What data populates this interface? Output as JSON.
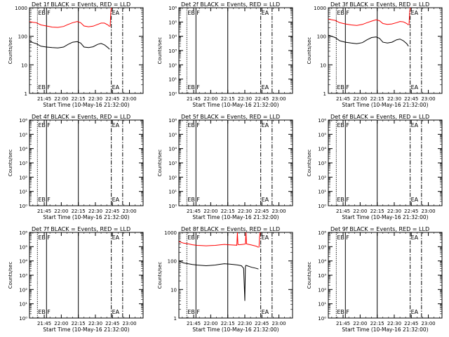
{
  "chart_data": [
    {
      "type": "line",
      "title": "Det 1f BLACK = Events, RED = LLD",
      "xlabel": "Start Time (10-May-16 21:32:00)",
      "ylabel": "Counts/sec",
      "x_tick_labels": [
        "21:45",
        "22:00",
        "22:15",
        "22:30",
        "22:45",
        "23:00"
      ],
      "x_ticks_min": [
        13,
        28,
        43,
        58,
        73,
        88
      ],
      "xlim_min": [
        0,
        100
      ],
      "yscale": "log",
      "ylim": [
        1,
        1000
      ],
      "y_tick_labels": [
        "1",
        "10",
        "100",
        "1000"
      ],
      "y_tick_values": [
        1,
        10,
        100,
        1000
      ],
      "markers": [
        {
          "type": "dotted",
          "x_min": 7,
          "label": "EB"
        },
        {
          "type": "solid",
          "x_min": 15,
          "label": "F"
        },
        {
          "type": "solid",
          "x_min": 43,
          "label": ""
        },
        {
          "type": "dashdot",
          "x_min": 72,
          "label": "EA"
        },
        {
          "type": "dashdot",
          "x_min": 82,
          "label": ""
        }
      ],
      "series": [
        {
          "color": "#ff0000",
          "x": [
            0,
            3,
            6,
            10,
            15,
            20,
            25,
            30,
            34,
            38,
            42,
            45,
            48,
            52,
            56,
            60,
            63,
            66,
            69,
            70.5
          ],
          "y": [
            330,
            310,
            300,
            250,
            230,
            210,
            205,
            220,
            260,
            300,
            330,
            300,
            230,
            215,
            225,
            260,
            290,
            290,
            250,
            220
          ]
        },
        {
          "color": "#000000",
          "x": [
            0,
            3,
            6,
            10,
            15,
            20,
            25,
            30,
            34,
            38,
            42,
            45,
            48,
            52,
            56,
            60,
            63,
            66,
            69,
            70.5
          ],
          "y": [
            70,
            60,
            55,
            45,
            42,
            40,
            39,
            42,
            52,
            62,
            65,
            58,
            42,
            40,
            43,
            52,
            56,
            50,
            40,
            35
          ]
        },
        {
          "color": "#ff0000",
          "x": [
            71,
            71.5,
            72
          ],
          "y": [
            220,
            600,
            1000
          ]
        }
      ]
    },
    {
      "type": "line",
      "title": "Det 2f BLACK = Events, RED = LLD",
      "xlabel": "Start Time (10-May-16 21:32:00)",
      "ylabel": "Counts/sec",
      "x_tick_labels": [
        "21:45",
        "22:00",
        "22:15",
        "22:30",
        "22:45",
        "23:00"
      ],
      "x_ticks_min": [
        13,
        28,
        43,
        58,
        73,
        88
      ],
      "xlim_min": [
        0,
        100
      ],
      "yscale": "log",
      "ylim": [
        1,
        1000000
      ],
      "y_tick_labels": [
        "10⁰",
        "10¹",
        "10²",
        "10³",
        "10⁴",
        "10⁵",
        "10⁶"
      ],
      "y_tick_values": [
        1,
        10,
        100,
        1000,
        10000,
        100000,
        1000000
      ],
      "markers": [
        {
          "type": "dotted",
          "x_min": 7,
          "label": "EB"
        },
        {
          "type": "solid",
          "x_min": 15,
          "label": "F"
        },
        {
          "type": "solid",
          "x_min": 43,
          "label": ""
        },
        {
          "type": "dashdot",
          "x_min": 72,
          "label": "EA"
        },
        {
          "type": "dashdot",
          "x_min": 82,
          "label": ""
        }
      ],
      "series": []
    },
    {
      "type": "line",
      "title": "Det 3f BLACK = Events, RED = LLD",
      "xlabel": "Start Time (10-May-16 21:32:00)",
      "ylabel": "Counts/sec",
      "x_tick_labels": [
        "21:45",
        "22:00",
        "22:15",
        "22:30",
        "22:45",
        "23:00"
      ],
      "x_ticks_min": [
        13,
        28,
        43,
        58,
        73,
        88
      ],
      "xlim_min": [
        0,
        100
      ],
      "yscale": "log",
      "ylim": [
        1,
        1000
      ],
      "y_tick_labels": [
        "1",
        "10",
        "100",
        "1000"
      ],
      "y_tick_values": [
        1,
        10,
        100,
        1000
      ],
      "markers": [
        {
          "type": "dotted",
          "x_min": 7,
          "label": "EB"
        },
        {
          "type": "solid",
          "x_min": 15,
          "label": "F"
        },
        {
          "type": "solid",
          "x_min": 43,
          "label": ""
        },
        {
          "type": "dashdot",
          "x_min": 72,
          "label": "EA"
        },
        {
          "type": "dashdot",
          "x_min": 82,
          "label": ""
        }
      ],
      "series": [
        {
          "color": "#ff0000",
          "x": [
            0,
            3,
            6,
            10,
            15,
            20,
            25,
            30,
            34,
            38,
            42,
            45,
            48,
            52,
            56,
            60,
            63,
            66,
            69,
            70.5
          ],
          "y": [
            400,
            380,
            360,
            300,
            270,
            250,
            240,
            260,
            300,
            340,
            380,
            350,
            280,
            260,
            270,
            300,
            330,
            320,
            280,
            250
          ]
        },
        {
          "color": "#000000",
          "x": [
            0,
            3,
            6,
            10,
            15,
            20,
            25,
            30,
            34,
            38,
            42,
            45,
            48,
            52,
            56,
            60,
            63,
            66,
            69,
            70.5
          ],
          "y": [
            110,
            100,
            90,
            70,
            62,
            58,
            55,
            60,
            75,
            90,
            95,
            85,
            62,
            58,
            62,
            75,
            80,
            70,
            55,
            45
          ]
        },
        {
          "color": "#ff0000",
          "x": [
            71,
            71.5,
            72
          ],
          "y": [
            250,
            600,
            1000
          ]
        }
      ]
    },
    {
      "type": "line",
      "title": "Det 4f BLACK = Events, RED = LLD",
      "xlabel": "Start Time (10-May-16 21:32:00)",
      "ylabel": "Counts/sec",
      "x_tick_labels": [
        "21:45",
        "22:00",
        "22:15",
        "22:30",
        "22:45",
        "23:00"
      ],
      "x_ticks_min": [
        13,
        28,
        43,
        58,
        73,
        88
      ],
      "xlim_min": [
        0,
        100
      ],
      "yscale": "log",
      "ylim": [
        1,
        1000000
      ],
      "y_tick_labels": [
        "10⁰",
        "10¹",
        "10²",
        "10³",
        "10⁴",
        "10⁵",
        "10⁶"
      ],
      "y_tick_values": [
        1,
        10,
        100,
        1000,
        10000,
        100000,
        1000000
      ],
      "markers": [
        {
          "type": "dotted",
          "x_min": 7,
          "label": "EB"
        },
        {
          "type": "solid",
          "x_min": 15,
          "label": "F"
        },
        {
          "type": "solid",
          "x_min": 43,
          "label": ""
        },
        {
          "type": "dashdot",
          "x_min": 72,
          "label": "EA"
        },
        {
          "type": "dashdot",
          "x_min": 82,
          "label": ""
        }
      ],
      "series": []
    },
    {
      "type": "line",
      "title": "Det 5f BLACK = Events, RED = LLD",
      "xlabel": "Start Time (10-May-16 21:32:00)",
      "ylabel": "Counts/sec",
      "x_tick_labels": [
        "21:45",
        "22:00",
        "22:15",
        "22:30",
        "22:45",
        "23:00"
      ],
      "x_ticks_min": [
        13,
        28,
        43,
        58,
        73,
        88
      ],
      "xlim_min": [
        0,
        100
      ],
      "yscale": "log",
      "ylim": [
        1,
        1000000
      ],
      "y_tick_labels": [
        "10⁰",
        "10¹",
        "10²",
        "10³",
        "10⁴",
        "10⁵",
        "10⁶"
      ],
      "y_tick_values": [
        1,
        10,
        100,
        1000,
        10000,
        100000,
        1000000
      ],
      "markers": [
        {
          "type": "dotted",
          "x_min": 7,
          "label": "EB"
        },
        {
          "type": "solid",
          "x_min": 15,
          "label": "F"
        },
        {
          "type": "solid",
          "x_min": 43,
          "label": ""
        },
        {
          "type": "dashdot",
          "x_min": 72,
          "label": "EA"
        },
        {
          "type": "dashdot",
          "x_min": 82,
          "label": ""
        }
      ],
      "series": []
    },
    {
      "type": "line",
      "title": "Det 6f BLACK = Events, RED = LLD",
      "xlabel": "Start Time (10-May-16 21:32:00)",
      "ylabel": "Counts/sec",
      "x_tick_labels": [
        "21:45",
        "22:00",
        "22:15",
        "22:30",
        "22:45",
        "23:00"
      ],
      "x_ticks_min": [
        13,
        28,
        43,
        58,
        73,
        88
      ],
      "xlim_min": [
        0,
        100
      ],
      "yscale": "log",
      "ylim": [
        1,
        1000000
      ],
      "y_tick_labels": [
        "10⁰",
        "10¹",
        "10²",
        "10³",
        "10⁴",
        "10⁵",
        "10⁶"
      ],
      "y_tick_values": [
        1,
        10,
        100,
        1000,
        10000,
        100000,
        1000000
      ],
      "markers": [
        {
          "type": "dotted",
          "x_min": 7,
          "label": "EB"
        },
        {
          "type": "solid",
          "x_min": 15,
          "label": "F"
        },
        {
          "type": "solid",
          "x_min": 43,
          "label": ""
        },
        {
          "type": "dashdot",
          "x_min": 72,
          "label": "EA"
        },
        {
          "type": "dashdot",
          "x_min": 82,
          "label": ""
        }
      ],
      "series": []
    },
    {
      "type": "line",
      "title": "Det 7f BLACK = Events, RED = LLD",
      "xlabel": "Start Time (10-May-16 21:32:00)",
      "ylabel": "Counts/sec",
      "x_tick_labels": [
        "21:45",
        "22:00",
        "22:15",
        "22:30",
        "22:45",
        "23:00"
      ],
      "x_ticks_min": [
        13,
        28,
        43,
        58,
        73,
        88
      ],
      "xlim_min": [
        0,
        100
      ],
      "yscale": "log",
      "ylim": [
        1,
        1000000
      ],
      "y_tick_labels": [
        "10⁰",
        "10¹",
        "10²",
        "10³",
        "10⁴",
        "10⁵",
        "10⁶"
      ],
      "y_tick_values": [
        1,
        10,
        100,
        1000,
        10000,
        100000,
        1000000
      ],
      "markers": [
        {
          "type": "dotted",
          "x_min": 7,
          "label": "EB"
        },
        {
          "type": "solid",
          "x_min": 15,
          "label": "F"
        },
        {
          "type": "solid",
          "x_min": 43,
          "label": ""
        },
        {
          "type": "dashdot",
          "x_min": 72,
          "label": "EA"
        },
        {
          "type": "dashdot",
          "x_min": 82,
          "label": ""
        }
      ],
      "series": []
    },
    {
      "type": "line",
      "title": "Det 8f BLACK = Events, RED = LLD",
      "xlabel": "Start Time (10-May-16 21:32:00)",
      "ylabel": "Counts/sec",
      "x_tick_labels": [
        "21:45",
        "22:00",
        "22:15",
        "22:30",
        "22:45",
        "23:00"
      ],
      "x_ticks_min": [
        13,
        28,
        43,
        58,
        73,
        88
      ],
      "xlim_min": [
        0,
        100
      ],
      "yscale": "log",
      "ylim": [
        1,
        1000
      ],
      "y_tick_labels": [
        "1",
        "10",
        "100",
        "1000"
      ],
      "y_tick_values": [
        1,
        10,
        100,
        1000
      ],
      "markers": [
        {
          "type": "dotted",
          "x_min": 7,
          "label": "EB"
        },
        {
          "type": "solid",
          "x_min": 15,
          "label": "F"
        },
        {
          "type": "solid",
          "x_min": 43,
          "label": ""
        },
        {
          "type": "dashdot",
          "x_min": 72,
          "label": "EA"
        },
        {
          "type": "dashdot",
          "x_min": 82,
          "label": ""
        }
      ],
      "series": [
        {
          "color": "#ff0000",
          "x": [
            0,
            4,
            8,
            12,
            16,
            20,
            24,
            28,
            32,
            36,
            40,
            44,
            48,
            51,
            51.5,
            52,
            53,
            56,
            58.5,
            59,
            59.5,
            60,
            64,
            68,
            70
          ],
          "y": [
            480,
            420,
            400,
            370,
            350,
            345,
            340,
            345,
            350,
            365,
            380,
            370,
            360,
            355,
            1000,
            380,
            370,
            380,
            390,
            1000,
            400,
            390,
            360,
            330,
            300
          ]
        },
        {
          "color": "#000000",
          "x": [
            0,
            4,
            8,
            12,
            16,
            20,
            24,
            28,
            32,
            36,
            40,
            44,
            48,
            52,
            55,
            57,
            58,
            58.5,
            59,
            60,
            64,
            68,
            70
          ],
          "y": [
            100,
            85,
            80,
            75,
            72,
            70,
            68,
            70,
            72,
            76,
            80,
            78,
            75,
            72,
            68,
            55,
            4,
            65,
            70,
            68,
            60,
            55,
            52
          ]
        },
        {
          "color": "#ff0000",
          "x": [
            70.5,
            71,
            71.5
          ],
          "y": [
            300,
            700,
            1000
          ]
        }
      ]
    },
    {
      "type": "line",
      "title": "Det 9f BLACK = Events, RED = LLD",
      "xlabel": "Start Time (10-May-16 21:32:00)",
      "ylabel": "Counts/sec",
      "x_tick_labels": [
        "21:45",
        "22:00",
        "22:15",
        "22:30",
        "22:45",
        "23:00"
      ],
      "x_ticks_min": [
        13,
        28,
        43,
        58,
        73,
        88
      ],
      "xlim_min": [
        0,
        100
      ],
      "yscale": "log",
      "ylim": [
        1,
        1000000
      ],
      "y_tick_labels": [
        "10⁰",
        "10¹",
        "10²",
        "10³",
        "10⁴",
        "10⁵",
        "10⁶"
      ],
      "y_tick_values": [
        1,
        10,
        100,
        1000,
        10000,
        100000,
        1000000
      ],
      "markers": [
        {
          "type": "dotted",
          "x_min": 7,
          "label": "EB"
        },
        {
          "type": "solid",
          "x_min": 15,
          "label": "F"
        },
        {
          "type": "solid",
          "x_min": 43,
          "label": ""
        },
        {
          "type": "dashdot",
          "x_min": 72,
          "label": "EA"
        },
        {
          "type": "dashdot",
          "x_min": 82,
          "label": ""
        }
      ],
      "series": []
    }
  ]
}
